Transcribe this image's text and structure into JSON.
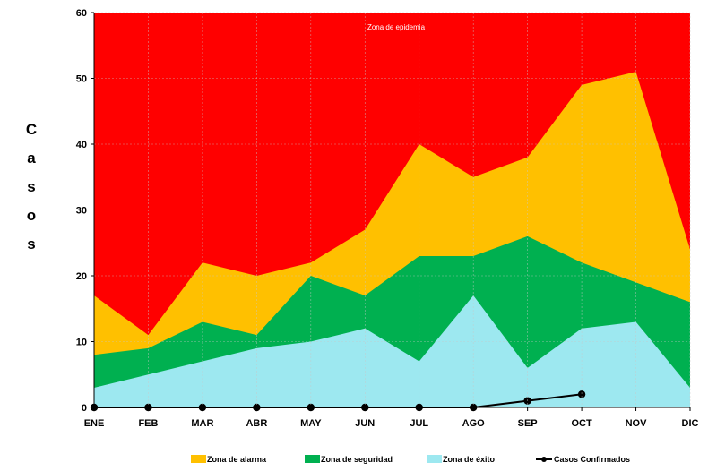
{
  "chart_data": {
    "type": "area",
    "categories": [
      "ENE",
      "FEB",
      "MAR",
      "ABR",
      "MAY",
      "JUN",
      "JUL",
      "AGO",
      "SEP",
      "OCT",
      "NOV",
      "DIC"
    ],
    "ylabel": "Casos",
    "ylim": [
      0,
      60
    ],
    "yticks": [
      "0",
      "10",
      "20",
      "30",
      "40",
      "50",
      "60"
    ],
    "grid": true,
    "legend_placement": "bottom",
    "annotation": "Zona de epidemia",
    "series": [
      {
        "name": "Zona de éxito",
        "kind": "area",
        "color": "#9de8f0",
        "values": [
          3,
          5,
          7,
          9,
          10,
          12,
          7,
          17,
          6,
          12,
          13,
          3
        ]
      },
      {
        "name": "Zona de seguridad",
        "kind": "area",
        "color": "#00b050",
        "values": [
          8,
          9,
          13,
          11,
          20,
          17,
          23,
          23,
          26,
          22,
          19,
          16
        ]
      },
      {
        "name": "Zona de alarma",
        "kind": "area",
        "color": "#ffc000",
        "values": [
          17,
          11,
          22,
          20,
          22,
          27,
          40,
          35,
          38,
          49,
          51,
          24
        ]
      },
      {
        "name": "Casos Confirmados",
        "kind": "line",
        "color": "#000000",
        "values": [
          0,
          0,
          0,
          0,
          0,
          0,
          0,
          0,
          1,
          2,
          null,
          null
        ]
      }
    ],
    "background_zone_color": "#ff0000",
    "legend": [
      {
        "label": "Zona de alarma",
        "color": "#ffc000",
        "type": "box"
      },
      {
        "label": "Zona de seguridad",
        "color": "#00b050",
        "type": "box"
      },
      {
        "label": "Zona de éxito",
        "color": "#9de8f0",
        "type": "box"
      },
      {
        "label": "Casos Confirmados",
        "color": "#000000",
        "type": "line"
      }
    ]
  }
}
